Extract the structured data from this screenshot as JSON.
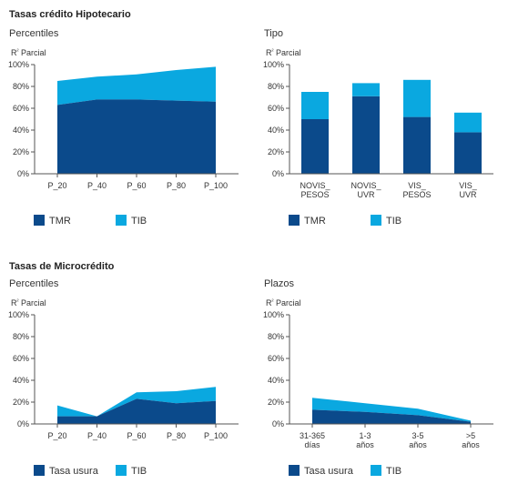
{
  "sections": [
    {
      "title": "Tasas crédito Hipotecario"
    },
    {
      "title": "Tasas de Microcrédito"
    }
  ],
  "colors": {
    "dark": "#0b4a8b",
    "light": "#0aa8e0",
    "axis": "#555555"
  },
  "chart_data": [
    {
      "type": "area",
      "subtitle": "Percentiles",
      "ylabel": "R² Parcial",
      "categories": [
        "P_20",
        "P_40",
        "P_60",
        "P_80",
        "P_100"
      ],
      "yticks": [
        "0%",
        "20%",
        "40%",
        "60%",
        "80%",
        "100%"
      ],
      "ylim": [
        0,
        100
      ],
      "stacked": true,
      "series": [
        {
          "name": "TMR",
          "color": "#0b4a8b",
          "values": [
            63,
            68,
            68,
            67,
            66
          ]
        },
        {
          "name": "TIB",
          "color": "#0aa8e0",
          "values": [
            22,
            21,
            23,
            28,
            32
          ]
        }
      ]
    },
    {
      "type": "bar",
      "subtitle": "Tipo",
      "ylabel": "R² Parcial",
      "categories": [
        [
          "NOVIS_",
          "PESOS"
        ],
        [
          "NOVIS_",
          "UVR"
        ],
        [
          "VIS_",
          "PESOS"
        ],
        [
          "VIS_",
          "UVR"
        ]
      ],
      "yticks": [
        "0%",
        "20%",
        "40%",
        "60%",
        "80%",
        "100%"
      ],
      "ylim": [
        0,
        100
      ],
      "stacked": true,
      "series": [
        {
          "name": "TMR",
          "color": "#0b4a8b",
          "values": [
            50,
            71,
            52,
            38
          ]
        },
        {
          "name": "TIB",
          "color": "#0aa8e0",
          "values": [
            25,
            12,
            34,
            18
          ]
        }
      ]
    },
    {
      "type": "area",
      "subtitle": "Percentiles",
      "ylabel": "R² Parcial",
      "categories": [
        "P_20",
        "P_40",
        "P_60",
        "P_80",
        "P_100"
      ],
      "yticks": [
        "0%",
        "20%",
        "40%",
        "60%",
        "80%",
        "100%"
      ],
      "ylim": [
        0,
        100
      ],
      "stacked": true,
      "series": [
        {
          "name": "Tasa usura",
          "color": "#0b4a8b",
          "values": [
            7,
            7,
            23,
            19,
            21
          ]
        },
        {
          "name": "TIB",
          "color": "#0aa8e0",
          "values": [
            10,
            0,
            6,
            11,
            13
          ]
        }
      ]
    },
    {
      "type": "area",
      "subtitle": "Plazos",
      "ylabel": "R² Parcial",
      "categories": [
        [
          "31-365",
          "días"
        ],
        [
          "1-3",
          "años"
        ],
        [
          "3-5",
          "años"
        ],
        [
          ">5",
          "años"
        ]
      ],
      "yticks": [
        "0%",
        "20%",
        "40%",
        "60%",
        "80%",
        "100%"
      ],
      "ylim": [
        0,
        100
      ],
      "stacked": true,
      "series": [
        {
          "name": "Tasa usura",
          "color": "#0b4a8b",
          "values": [
            13,
            11,
            8,
            2
          ]
        },
        {
          "name": "TIB",
          "color": "#0aa8e0",
          "values": [
            11,
            8,
            6,
            1
          ]
        }
      ]
    }
  ]
}
